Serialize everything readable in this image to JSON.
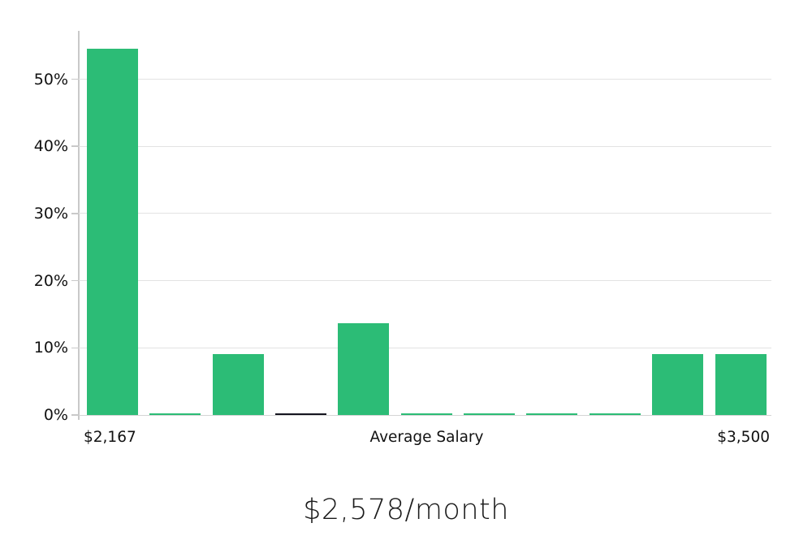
{
  "page": {
    "background": "#ffffff"
  },
  "chart_data": {
    "type": "bar",
    "title": "$2,578/month",
    "xlabel": "Average Salary",
    "ylabel": "",
    "x_axis_labels": {
      "min": "$2,167",
      "center": "Average Salary",
      "max": "$3,500"
    },
    "categories": [
      "$2,167",
      "",
      "",
      "",
      "",
      "",
      "",
      "",
      "",
      "",
      "$3,500"
    ],
    "values": [
      54.5,
      0.2,
      9.1,
      0.3,
      13.7,
      0.2,
      0.2,
      0.2,
      0.2,
      9.1,
      9.1
    ],
    "highlight_index": 3,
    "ytick_labels": [
      "0%",
      "10%",
      "20%",
      "30%",
      "40%",
      "50%"
    ],
    "ytick_values": [
      0,
      10,
      20,
      30,
      40,
      50
    ],
    "ylim": [
      0,
      57.2
    ],
    "grid": true,
    "legend_position": "none",
    "colors": {
      "bar": "#2CBC76",
      "highlight_bar": "#15151F",
      "gridline": "#E3E3E3",
      "axis": "#C9C9C9",
      "text": "#111111"
    }
  }
}
